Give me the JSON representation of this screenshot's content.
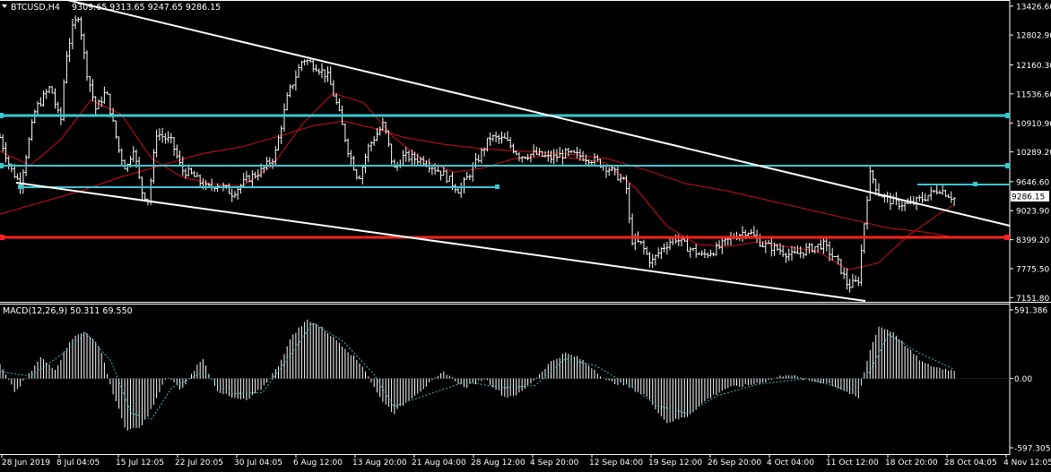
{
  "main_header": {
    "symbol": "BTCUSD,H4",
    "ohlc": "9309.65 9313.65 9247.65 9286.15"
  },
  "macd_header": {
    "label": "MACD(12,26,9) 50.311 69.550"
  },
  "colors": {
    "background": "#000000",
    "price_bars": "#ffffff",
    "moving_average": "#d01010",
    "trend_lines": "#ffffff",
    "horizontal_levels": "#37c8d4",
    "support_level": "#ff2020",
    "macd_histogram": "#ffffff",
    "macd_signal": "#3ab8c8",
    "price_tag_bg": "#ffffff",
    "price_tag_text": "#000000"
  },
  "chart_data": [
    {
      "type": "candlestick",
      "title": "BTCUSD,H4",
      "y_ticks": [
        "13426.60",
        "12802.90",
        "12160.30",
        "11536.60",
        "10910.90",
        "10289.20",
        "9646.60",
        "9023.90",
        "8399.20",
        "7775.50",
        "7151.80"
      ],
      "ylim": [
        7120,
        13480
      ],
      "current_price": "9286.15",
      "x_labels": [
        "28 Jun 2019",
        "8 Jul 04:05",
        "15 Jul 12:05",
        "22 Jul 20:05",
        "30 Jul 04:05",
        "6 Aug 12:00",
        "13 Aug 20:00",
        "21 Aug 04:00",
        "28 Aug 12:00",
        "4 Sep 20:00",
        "12 Sep 04:00",
        "19 Sep 12:00",
        "26 Sep 20:00",
        "4 Oct 04:00",
        "11 Oct 12:00",
        "18 Oct 20:00",
        "28 Oct 04:05",
        "4 Nov 12:05"
      ],
      "series": [
        {
          "name": "BTCUSD,H4",
          "anchors": [
            [
              0,
              10600
            ],
            [
              0.01,
              9950
            ],
            [
              0.02,
              9600
            ],
            [
              0.035,
              11200
            ],
            [
              0.05,
              11700
            ],
            [
              0.06,
              10900
            ],
            [
              0.065,
              12300
            ],
            [
              0.072,
              12950
            ],
            [
              0.078,
              13250
            ],
            [
              0.085,
              12100
            ],
            [
              0.095,
              11200
            ],
            [
              0.105,
              11600
            ],
            [
              0.118,
              10300
            ],
            [
              0.125,
              9900
            ],
            [
              0.132,
              10400
            ],
            [
              0.14,
              9450
            ],
            [
              0.147,
              9250
            ],
            [
              0.155,
              10700
            ],
            [
              0.17,
              10500
            ],
            [
              0.18,
              9900
            ],
            [
              0.19,
              9800
            ],
            [
              0.205,
              9500
            ],
            [
              0.215,
              9600
            ],
            [
              0.23,
              9400
            ],
            [
              0.245,
              9700
            ],
            [
              0.26,
              9900
            ],
            [
              0.272,
              10200
            ],
            [
              0.285,
              11500
            ],
            [
              0.3,
              12300
            ],
            [
              0.315,
              12100
            ],
            [
              0.325,
              11900
            ],
            [
              0.335,
              11200
            ],
            [
              0.345,
              10300
            ],
            [
              0.355,
              9700
            ],
            [
              0.365,
              10400
            ],
            [
              0.38,
              10900
            ],
            [
              0.39,
              9900
            ],
            [
              0.4,
              10200
            ],
            [
              0.42,
              10100
            ],
            [
              0.44,
              9800
            ],
            [
              0.455,
              9450
            ],
            [
              0.47,
              10000
            ],
            [
              0.485,
              10600
            ],
            [
              0.5,
              10550
            ],
            [
              0.515,
              10200
            ],
            [
              0.53,
              10250
            ],
            [
              0.545,
              10150
            ],
            [
              0.56,
              10250
            ],
            [
              0.575,
              10200
            ],
            [
              0.59,
              10100
            ],
            [
              0.605,
              9900
            ],
            [
              0.62,
              9600
            ],
            [
              0.625,
              8400
            ],
            [
              0.635,
              8300
            ],
            [
              0.645,
              7900
            ],
            [
              0.655,
              8200
            ],
            [
              0.668,
              8450
            ],
            [
              0.68,
              8250
            ],
            [
              0.695,
              8050
            ],
            [
              0.71,
              8200
            ],
            [
              0.725,
              8450
            ],
            [
              0.74,
              8600
            ],
            [
              0.755,
              8300
            ],
            [
              0.77,
              8200
            ],
            [
              0.785,
              8050
            ],
            [
              0.8,
              8200
            ],
            [
              0.815,
              8300
            ],
            [
              0.83,
              7900
            ],
            [
              0.84,
              7400
            ],
            [
              0.85,
              7500
            ],
            [
              0.858,
              9200
            ],
            [
              0.862,
              9850
            ],
            [
              0.87,
              9400
            ],
            [
              0.885,
              9200
            ],
            [
              0.9,
              9150
            ],
            [
              0.915,
              9300
            ],
            [
              0.93,
              9500
            ],
            [
              0.945,
              9286
            ]
          ]
        },
        {
          "name": "Moving Average",
          "anchors": [
            [
              0,
              8950
            ],
            [
              0.04,
              9200
            ],
            [
              0.08,
              9450
            ],
            [
              0.12,
              9750
            ],
            [
              0.16,
              10000
            ],
            [
              0.2,
              10250
            ],
            [
              0.24,
              10400
            ],
            [
              0.28,
              10650
            ],
            [
              0.31,
              10850
            ],
            [
              0.34,
              10950
            ],
            [
              0.37,
              10800
            ],
            [
              0.4,
              10600
            ],
            [
              0.44,
              10450
            ],
            [
              0.48,
              10350
            ],
            [
              0.52,
              10300
            ],
            [
              0.56,
              10250
            ],
            [
              0.6,
              10150
            ],
            [
              0.64,
              9900
            ],
            [
              0.68,
              9600
            ],
            [
              0.72,
              9450
            ],
            [
              0.76,
              9250
            ],
            [
              0.8,
              9050
            ],
            [
              0.84,
              8850
            ],
            [
              0.88,
              8650
            ],
            [
              0.92,
              8550
            ],
            [
              0.945,
              8450
            ]
          ]
        },
        {
          "name": "Oscillating Average",
          "anchors": [
            [
              0,
              10300
            ],
            [
              0.03,
              10000
            ],
            [
              0.06,
              10550
            ],
            [
              0.09,
              11400
            ],
            [
              0.12,
              11100
            ],
            [
              0.15,
              10150
            ],
            [
              0.18,
              9750
            ],
            [
              0.21,
              9600
            ],
            [
              0.24,
              9550
            ],
            [
              0.27,
              10000
            ],
            [
              0.3,
              10900
            ],
            [
              0.33,
              11550
            ],
            [
              0.36,
              11350
            ],
            [
              0.39,
              10600
            ],
            [
              0.42,
              10100
            ],
            [
              0.45,
              9850
            ],
            [
              0.48,
              9950
            ],
            [
              0.51,
              10150
            ],
            [
              0.54,
              10200
            ],
            [
              0.57,
              10150
            ],
            [
              0.6,
              10050
            ],
            [
              0.63,
              9500
            ],
            [
              0.66,
              8700
            ],
            [
              0.69,
              8300
            ],
            [
              0.72,
              8250
            ],
            [
              0.75,
              8350
            ],
            [
              0.78,
              8250
            ],
            [
              0.81,
              8150
            ],
            [
              0.84,
              7750
            ],
            [
              0.87,
              7900
            ],
            [
              0.9,
              8500
            ],
            [
              0.93,
              8950
            ],
            [
              0.945,
              9150
            ]
          ]
        }
      ]
    },
    {
      "type": "bar",
      "title": "MACD(12,26,9) 50.311 69.550",
      "y_ticks": [
        "591.386",
        "0.00",
        "-597.305"
      ],
      "ylim": [
        -597.305,
        591.386
      ],
      "series": [
        {
          "name": "MACD",
          "anchors": [
            [
              0,
              120
            ],
            [
              0.015,
              -120
            ],
            [
              0.03,
              50
            ],
            [
              0.04,
              180
            ],
            [
              0.055,
              80
            ],
            [
              0.07,
              340
            ],
            [
              0.085,
              410
            ],
            [
              0.1,
              250
            ],
            [
              0.11,
              -80
            ],
            [
              0.125,
              -450
            ],
            [
              0.14,
              -420
            ],
            [
              0.155,
              -180
            ],
            [
              0.165,
              20
            ],
            [
              0.18,
              -100
            ],
            [
              0.2,
              180
            ],
            [
              0.215,
              -100
            ],
            [
              0.23,
              -170
            ],
            [
              0.245,
              -190
            ],
            [
              0.26,
              -80
            ],
            [
              0.275,
              100
            ],
            [
              0.29,
              380
            ],
            [
              0.305,
              510
            ],
            [
              0.32,
              430
            ],
            [
              0.34,
              280
            ],
            [
              0.36,
              100
            ],
            [
              0.375,
              -150
            ],
            [
              0.39,
              -300
            ],
            [
              0.405,
              -180
            ],
            [
              0.42,
              -80
            ],
            [
              0.44,
              60
            ],
            [
              0.46,
              -80
            ],
            [
              0.48,
              0
            ],
            [
              0.5,
              -160
            ],
            [
              0.515,
              -130
            ],
            [
              0.53,
              0
            ],
            [
              0.545,
              140
            ],
            [
              0.56,
              220
            ],
            [
              0.575,
              170
            ],
            [
              0.59,
              70
            ],
            [
              0.6,
              -20
            ],
            [
              0.62,
              -60
            ],
            [
              0.64,
              -150
            ],
            [
              0.66,
              -380
            ],
            [
              0.68,
              -330
            ],
            [
              0.7,
              -180
            ],
            [
              0.72,
              -80
            ],
            [
              0.74,
              -60
            ],
            [
              0.76,
              -20
            ],
            [
              0.78,
              40
            ],
            [
              0.8,
              -20
            ],
            [
              0.82,
              -40
            ],
            [
              0.84,
              -120
            ],
            [
              0.85,
              -180
            ],
            [
              0.86,
              200
            ],
            [
              0.87,
              450
            ],
            [
              0.885,
              400
            ],
            [
              0.9,
              250
            ],
            [
              0.915,
              130
            ],
            [
              0.93,
              90
            ],
            [
              0.945,
              70
            ]
          ]
        },
        {
          "name": "Signal",
          "anchors": [
            [
              0,
              60
            ],
            [
              0.03,
              20
            ],
            [
              0.06,
              200
            ],
            [
              0.085,
              390
            ],
            [
              0.11,
              150
            ],
            [
              0.13,
              -300
            ],
            [
              0.15,
              -350
            ],
            [
              0.17,
              -80
            ],
            [
              0.2,
              50
            ],
            [
              0.23,
              -130
            ],
            [
              0.26,
              -120
            ],
            [
              0.29,
              230
            ],
            [
              0.31,
              480
            ],
            [
              0.34,
              320
            ],
            [
              0.37,
              40
            ],
            [
              0.39,
              -240
            ],
            [
              0.42,
              -150
            ],
            [
              0.46,
              -30
            ],
            [
              0.5,
              -80
            ],
            [
              0.53,
              -60
            ],
            [
              0.56,
              170
            ],
            [
              0.59,
              110
            ],
            [
              0.62,
              -40
            ],
            [
              0.65,
              -230
            ],
            [
              0.68,
              -300
            ],
            [
              0.71,
              -150
            ],
            [
              0.75,
              -50
            ],
            [
              0.8,
              0
            ],
            [
              0.84,
              -100
            ],
            [
              0.86,
              40
            ],
            [
              0.88,
              380
            ],
            [
              0.91,
              220
            ],
            [
              0.945,
              80
            ]
          ]
        }
      ]
    }
  ]
}
